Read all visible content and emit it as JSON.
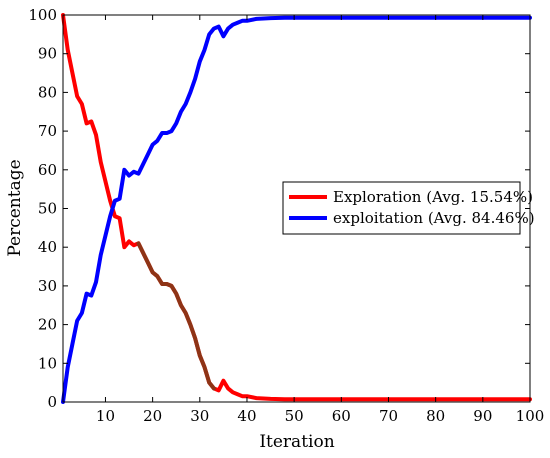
{
  "chart_data": {
    "type": "line",
    "xlabel": "Iteration",
    "ylabel": "Percentage",
    "xlim": [
      1,
      100
    ],
    "ylim": [
      0,
      100
    ],
    "xticks": [
      10,
      20,
      30,
      40,
      50,
      60,
      70,
      80,
      90,
      100
    ],
    "yticks": [
      0,
      10,
      20,
      30,
      40,
      50,
      60,
      70,
      80,
      90,
      100
    ],
    "grid": false,
    "legend_position": "center-right",
    "series": [
      {
        "name": "Exploration (Avg. 15.54%)",
        "color": "#ff0000",
        "x": [
          1,
          2,
          3,
          4,
          5,
          6,
          7,
          8,
          9,
          10,
          11,
          12,
          13,
          14,
          15,
          16,
          17,
          18,
          19,
          20,
          21,
          22,
          23,
          24,
          25,
          26,
          27,
          28,
          29,
          30,
          31,
          32,
          33,
          34,
          35,
          36,
          37,
          38,
          39,
          40,
          42,
          45,
          48,
          50,
          60,
          70,
          80,
          90,
          100
        ],
        "y": [
          100,
          91,
          85,
          79,
          77,
          72,
          72.5,
          69,
          62,
          57,
          52,
          48,
          47.5,
          40,
          41.5,
          40.5,
          41,
          38.5,
          36,
          33.5,
          32.5,
          30.5,
          30.5,
          30,
          28,
          25,
          23,
          20,
          16.5,
          12,
          9,
          5,
          3.5,
          3,
          5.5,
          3.5,
          2.5,
          2,
          1.5,
          1.5,
          1,
          0.8,
          0.7,
          0.7,
          0.7,
          0.7,
          0.7,
          0.7,
          0.7
        ]
      },
      {
        "name": "exploitation (Avg. 84.46%)",
        "color": "#0000ff",
        "x": [
          1,
          2,
          3,
          4,
          5,
          6,
          7,
          8,
          9,
          10,
          11,
          12,
          13,
          14,
          15,
          16,
          17,
          18,
          19,
          20,
          21,
          22,
          23,
          24,
          25,
          26,
          27,
          28,
          29,
          30,
          31,
          32,
          33,
          34,
          35,
          36,
          37,
          38,
          39,
          40,
          42,
          45,
          48,
          50,
          60,
          70,
          80,
          90,
          100
        ],
        "y": [
          0,
          9,
          15,
          21,
          23,
          28,
          27.5,
          31,
          38,
          43,
          48,
          52,
          52.5,
          60,
          58.5,
          59.5,
          59,
          61.5,
          64,
          66.5,
          67.5,
          69.5,
          69.5,
          70,
          72,
          75,
          77,
          80,
          83.5,
          88,
          91,
          95,
          96.5,
          97,
          94.5,
          96.5,
          97.5,
          98,
          98.5,
          98.5,
          99,
          99.2,
          99.3,
          99.3,
          99.3,
          99.3,
          99.3,
          99.3,
          99.3
        ]
      }
    ],
    "overlap_color": "#7a3d1a"
  }
}
